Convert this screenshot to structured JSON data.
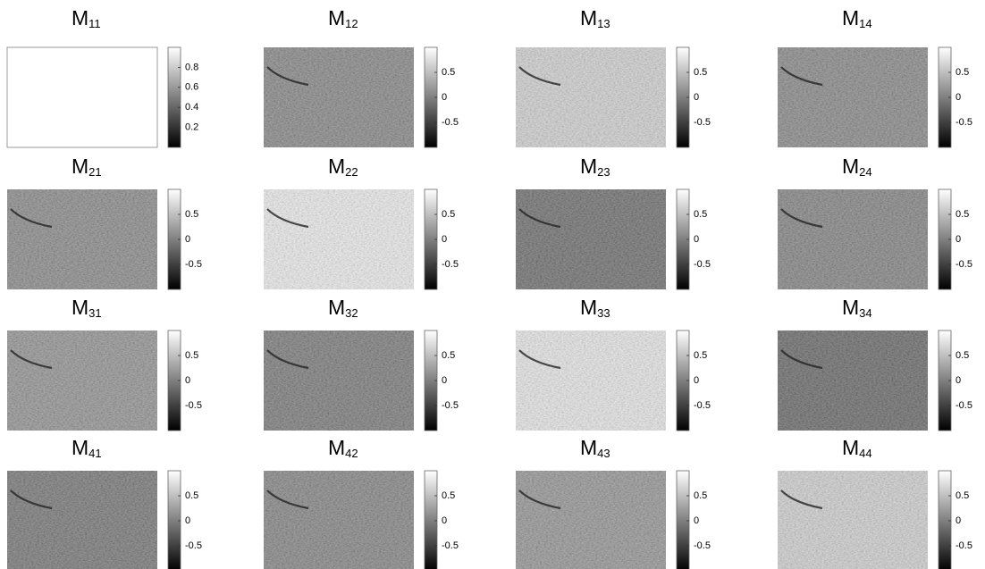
{
  "panels": [
    {
      "title": "M",
      "subscript": "11",
      "clim": [
        0,
        1
      ],
      "ticks": [
        0.8,
        0.6,
        0.4,
        0.2
      ],
      "tone": "#ffffff",
      "texture": false
    },
    {
      "title": "M",
      "subscript": "12",
      "clim": [
        -1,
        1
      ],
      "ticks": [
        0.5,
        0,
        -0.5
      ],
      "tone": "#7a7a7a",
      "texture": true
    },
    {
      "title": "M",
      "subscript": "13",
      "clim": [
        -1,
        1
      ],
      "ticks": [
        0.5,
        0,
        -0.5
      ],
      "tone": "#cdcdcd",
      "texture": true
    },
    {
      "title": "M",
      "subscript": "14",
      "clim": [
        -1,
        1
      ],
      "ticks": [
        0.5,
        0,
        -0.5
      ],
      "tone": "#7c7c7c",
      "texture": true
    },
    {
      "title": "M",
      "subscript": "21",
      "clim": [
        -1,
        1
      ],
      "ticks": [
        0.5,
        0,
        -0.5
      ],
      "tone": "#7e7e7e",
      "texture": true
    },
    {
      "title": "M",
      "subscript": "22",
      "clim": [
        -1,
        1
      ],
      "ticks": [
        0.5,
        0,
        -0.5
      ],
      "tone": "#ececec",
      "texture": true
    },
    {
      "title": "M",
      "subscript": "23",
      "clim": [
        -1,
        1
      ],
      "ticks": [
        0.5,
        0,
        -0.5
      ],
      "tone": "#5e5e5e",
      "texture": true
    },
    {
      "title": "M",
      "subscript": "24",
      "clim": [
        -1,
        1
      ],
      "ticks": [
        0.5,
        0,
        -0.5
      ],
      "tone": "#767676",
      "texture": true
    },
    {
      "title": "M",
      "subscript": "31",
      "clim": [
        -1,
        1
      ],
      "ticks": [
        0.5,
        0,
        -0.5
      ],
      "tone": "#888888",
      "texture": true
    },
    {
      "title": "M",
      "subscript": "32",
      "clim": [
        -1,
        1
      ],
      "ticks": [
        0.5,
        0,
        -0.5
      ],
      "tone": "#6c6c6c",
      "texture": true
    },
    {
      "title": "M",
      "subscript": "33",
      "clim": [
        -1,
        1
      ],
      "ticks": [
        0.5,
        0,
        -0.5
      ],
      "tone": "#e6e6e6",
      "texture": true
    },
    {
      "title": "M",
      "subscript": "34",
      "clim": [
        -1,
        1
      ],
      "ticks": [
        0.5,
        0,
        -0.5
      ],
      "tone": "#585858",
      "texture": true
    },
    {
      "title": "M",
      "subscript": "41",
      "clim": [
        -1,
        1
      ],
      "ticks": [
        0.5,
        0,
        -0.5
      ],
      "tone": "#686868",
      "texture": true
    },
    {
      "title": "M",
      "subscript": "42",
      "clim": [
        -1,
        1
      ],
      "ticks": [
        0.5,
        0,
        -0.5
      ],
      "tone": "#787878",
      "texture": true
    },
    {
      "title": "M",
      "subscript": "43",
      "clim": [
        -1,
        1
      ],
      "ticks": [
        0.5,
        0,
        -0.5
      ],
      "tone": "#8a8a8a",
      "texture": true
    },
    {
      "title": "M",
      "subscript": "44",
      "clim": [
        -1,
        1
      ],
      "ticks": [
        0.5,
        0,
        -0.5
      ],
      "tone": "#cccccc",
      "texture": true
    }
  ]
}
